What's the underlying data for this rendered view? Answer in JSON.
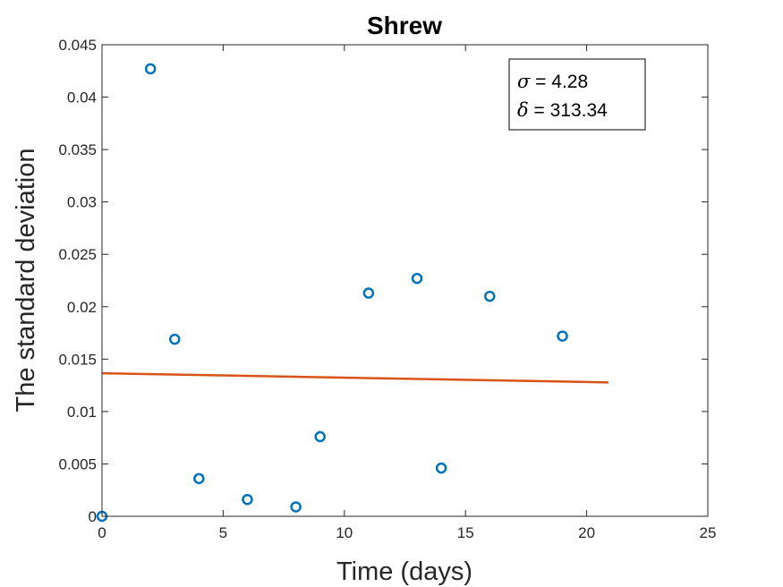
{
  "chart_data": {
    "type": "scatter",
    "title": "Shrew",
    "xlabel": "Time (days)",
    "ylabel": "The standard deviation",
    "xlim": [
      0,
      25
    ],
    "ylim": [
      0,
      0.045
    ],
    "xticks": [
      0,
      5,
      10,
      15,
      20,
      25
    ],
    "xtick_labels": [
      "0",
      "5",
      "10",
      "15",
      "20",
      "25"
    ],
    "yticks": [
      0,
      0.005,
      0.01,
      0.015,
      0.02,
      0.025,
      0.03,
      0.035,
      0.04,
      0.045
    ],
    "ytick_labels": [
      "0",
      "0.005",
      "0.01",
      "0.015",
      "0.02",
      "0.025",
      "0.03",
      "0.035",
      "0.04",
      "0.045"
    ],
    "grid": false,
    "series": [
      {
        "name": "observations",
        "type": "scatter",
        "marker": "open-circle",
        "color": "#0072BD",
        "x": [
          0,
          2,
          3,
          4,
          6,
          8,
          9,
          11,
          13,
          14,
          16,
          19
        ],
        "y": [
          0.0,
          0.0427,
          0.0169,
          0.0036,
          0.0016,
          0.0009,
          0.0076,
          0.0213,
          0.0227,
          0.0046,
          0.021,
          0.0172
        ]
      },
      {
        "name": "fit",
        "type": "line",
        "color": "#D95319",
        "x": [
          0,
          20.9
        ],
        "y": [
          0.01365,
          0.01278
        ]
      }
    ],
    "annotation": {
      "position": "top-right",
      "lines": [
        {
          "symbol": "σ",
          "text": " = 4.28"
        },
        {
          "symbol": "δ",
          "text": " = 313.34"
        }
      ]
    }
  }
}
